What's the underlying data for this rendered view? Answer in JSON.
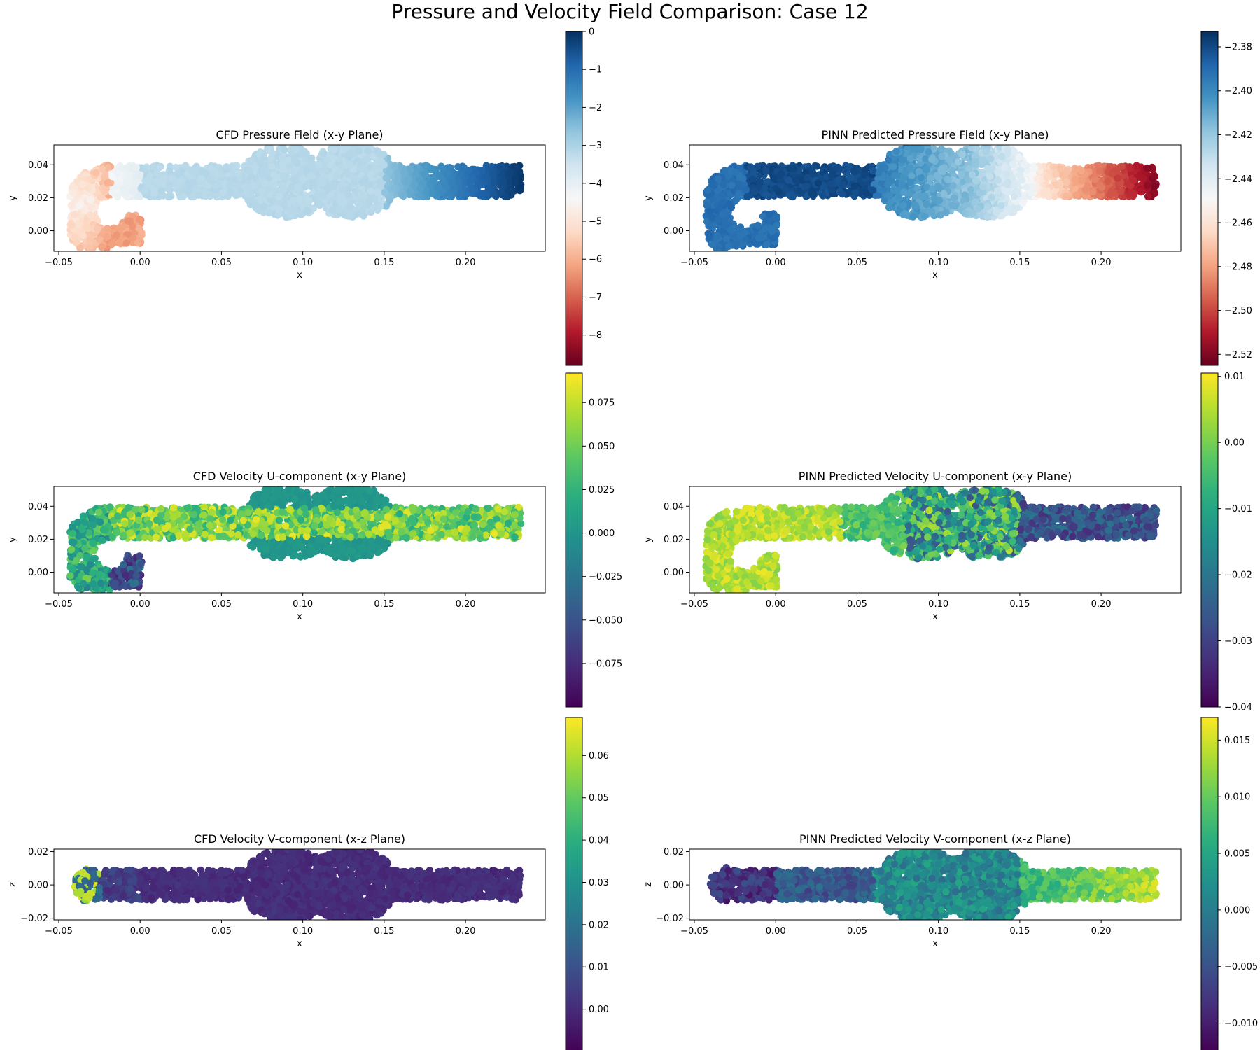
{
  "figure": {
    "title": "Pressure and Velocity Field Comparison: Case 12"
  },
  "chart_data": [
    {
      "id": "cfd-pressure",
      "type": "scatter",
      "title": "CFD Pressure Field (x-y Plane)",
      "xlabel": "x",
      "ylabel": "y",
      "xlim": [
        -0.053,
        0.249
      ],
      "ylim": [
        -0.0125,
        0.052
      ],
      "xticks": [
        -0.05,
        0.0,
        0.05,
        0.1,
        0.15,
        0.2
      ],
      "xtick_labels": [
        "−0.05",
        "0.00",
        "0.05",
        "0.10",
        "0.15",
        "0.20"
      ],
      "yticks": [
        0.0,
        0.02,
        0.04
      ],
      "ytick_labels": [
        "0.00",
        "0.02",
        "0.04"
      ],
      "plane": "xy",
      "field": "cfd_pressure",
      "colormap": "RdBu",
      "colorbar": {
        "range": [
          -8.8,
          0.0
        ],
        "ticks": [
          0,
          -1,
          -2,
          -3,
          -4,
          -5,
          -6,
          -7,
          -8
        ],
        "tick_labels": [
          "0",
          "−1",
          "−2",
          "−3",
          "−4",
          "−5",
          "−6",
          "−7",
          "−8"
        ]
      }
    },
    {
      "id": "pinn-pressure",
      "type": "scatter",
      "title": "PINN Predicted Pressure Field (x-y Plane)",
      "xlabel": "x",
      "ylabel": "y",
      "xlim": [
        -0.053,
        0.249
      ],
      "ylim": [
        -0.0125,
        0.052
      ],
      "xticks": [
        -0.05,
        0.0,
        0.05,
        0.1,
        0.15,
        0.2
      ],
      "xtick_labels": [
        "−0.05",
        "0.00",
        "0.05",
        "0.10",
        "0.15",
        "0.20"
      ],
      "yticks": [
        0.0,
        0.02,
        0.04
      ],
      "ytick_labels": [
        "0.00",
        "0.02",
        "0.04"
      ],
      "plane": "xy",
      "field": "pinn_pressure",
      "colormap": "RdBu",
      "colorbar": {
        "range": [
          -2.525,
          -2.373
        ],
        "ticks": [
          -2.38,
          -2.4,
          -2.42,
          -2.44,
          -2.46,
          -2.48,
          -2.5,
          -2.52
        ],
        "tick_labels": [
          "−2.38",
          "−2.40",
          "−2.42",
          "−2.44",
          "−2.46",
          "−2.48",
          "−2.50",
          "−2.52"
        ]
      }
    },
    {
      "id": "cfd-velocity-u",
      "type": "scatter",
      "title": "CFD Velocity U-component (x-y Plane)",
      "xlabel": "x",
      "ylabel": "y",
      "xlim": [
        -0.053,
        0.249
      ],
      "ylim": [
        -0.0125,
        0.052
      ],
      "xticks": [
        -0.05,
        0.0,
        0.05,
        0.1,
        0.15,
        0.2
      ],
      "xtick_labels": [
        "−0.05",
        "0.00",
        "0.05",
        "0.10",
        "0.15",
        "0.20"
      ],
      "yticks": [
        0.0,
        0.02,
        0.04
      ],
      "ytick_labels": [
        "0.00",
        "0.02",
        "0.04"
      ],
      "plane": "xy",
      "field": "cfd_u",
      "colormap": "viridis",
      "colorbar": {
        "range": [
          -0.1,
          0.092
        ],
        "ticks": [
          0.075,
          0.05,
          0.025,
          0.0,
          -0.025,
          -0.05,
          -0.075
        ],
        "tick_labels": [
          "0.075",
          "0.050",
          "0.025",
          "0.000",
          "−0.025",
          "−0.050",
          "−0.075"
        ]
      }
    },
    {
      "id": "pinn-velocity-u",
      "type": "scatter",
      "title": "PINN Predicted Velocity U-component (x-y Plane)",
      "xlabel": "x",
      "ylabel": "y",
      "xlim": [
        -0.053,
        0.249
      ],
      "ylim": [
        -0.0125,
        0.052
      ],
      "xticks": [
        -0.05,
        0.0,
        0.05,
        0.1,
        0.15,
        0.2
      ],
      "xtick_labels": [
        "−0.05",
        "0.00",
        "0.05",
        "0.10",
        "0.15",
        "0.20"
      ],
      "yticks": [
        0.0,
        0.02,
        0.04
      ],
      "ytick_labels": [
        "0.00",
        "0.02",
        "0.04"
      ],
      "plane": "xy",
      "field": "pinn_u",
      "colormap": "viridis",
      "colorbar": {
        "range": [
          -0.04,
          0.0105
        ],
        "ticks": [
          0.01,
          0.0,
          -0.01,
          -0.02,
          -0.03,
          -0.04
        ],
        "tick_labels": [
          "0.01",
          "0.00",
          "−0.01",
          "−0.02",
          "−0.03",
          "−0.04"
        ]
      }
    },
    {
      "id": "cfd-velocity-v",
      "type": "scatter",
      "title": "CFD Velocity V-component (x-z Plane)",
      "xlabel": "x",
      "ylabel": "z",
      "xlim": [
        -0.053,
        0.249
      ],
      "ylim": [
        -0.021,
        0.0215
      ],
      "xticks": [
        -0.05,
        0.0,
        0.05,
        0.1,
        0.15,
        0.2
      ],
      "xtick_labels": [
        "−0.05",
        "0.00",
        "0.05",
        "0.10",
        "0.15",
        "0.20"
      ],
      "yticks": [
        -0.02,
        0.0,
        0.02
      ],
      "ytick_labels": [
        "−0.02",
        "0.00",
        "0.02"
      ],
      "plane": "xz",
      "field": "cfd_v",
      "colormap": "viridis",
      "colorbar": {
        "range": [
          -0.01,
          0.069
        ],
        "ticks": [
          0.06,
          0.05,
          0.04,
          0.03,
          0.02,
          0.01,
          0.0
        ],
        "tick_labels": [
          "0.06",
          "0.05",
          "0.04",
          "0.03",
          "0.02",
          "0.01",
          "0.00"
        ]
      }
    },
    {
      "id": "pinn-velocity-v",
      "type": "scatter",
      "title": "PINN Predicted Velocity V-component (x-z Plane)",
      "xlabel": "x",
      "ylabel": "z",
      "xlim": [
        -0.053,
        0.249
      ],
      "ylim": [
        -0.021,
        0.0215
      ],
      "xticks": [
        -0.05,
        0.0,
        0.05,
        0.1,
        0.15,
        0.2
      ],
      "xtick_labels": [
        "−0.05",
        "0.00",
        "0.05",
        "0.10",
        "0.15",
        "0.20"
      ],
      "yticks": [
        -0.02,
        0.0,
        0.02
      ],
      "ytick_labels": [
        "−0.02",
        "0.00",
        "0.02"
      ],
      "plane": "xz",
      "field": "pinn_v",
      "colormap": "viridis",
      "colorbar": {
        "range": [
          -0.0125,
          0.017
        ],
        "ticks": [
          0.015,
          0.01,
          0.005,
          0.0,
          -0.005,
          -0.01
        ],
        "tick_labels": [
          "0.015",
          "0.010",
          "0.005",
          "0.000",
          "−0.005",
          "−0.010"
        ]
      }
    }
  ]
}
